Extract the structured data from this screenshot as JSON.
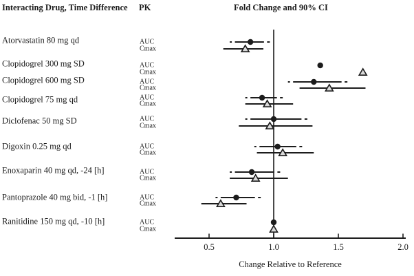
{
  "headers": {
    "drug_col": "Interacting Drug, Time Difference",
    "pk_col": "PK",
    "chart_title": "Fold Change and 90% CI"
  },
  "style": {
    "ink": "#1c1c1c",
    "triangle_fill": "#d9d9d9",
    "background": "#ffffff"
  },
  "chart_data": {
    "type": "scatter",
    "subtype": "forest-plot",
    "title": "Fold Change and 90% CI",
    "xlabel": "Change Relative to Reference",
    "xlim": [
      0.25,
      2.02
    ],
    "x_ticks": [
      "0.5",
      "1.0",
      "1.5",
      "2.0"
    ],
    "x_tick_values": [
      0.5,
      1.0,
      1.5,
      2.0
    ],
    "reference_line": 1.0,
    "ci_level": "90%",
    "pk_row_labels": [
      "AUC",
      "Cmax"
    ],
    "marker_legend": {
      "auc": "filled circle, dash-dot CI line",
      "cmax": "open triangle, solid CI line"
    },
    "groups": [
      {
        "drug": "Atorvastatin 80 mg qd",
        "auc": {
          "est": 0.82,
          "lo": 0.66,
          "hi": 0.97
        },
        "cmax": {
          "est": 0.78,
          "lo": 0.61,
          "hi": 0.92
        }
      },
      {
        "drug": "Clopidogrel 300 mg SD",
        "auc": {
          "est": 1.36,
          "lo": null,
          "hi": null
        },
        "cmax": {
          "est": 1.69,
          "lo": null,
          "hi": null
        }
      },
      {
        "drug": "Clopidogrel 600 mg SD",
        "auc": {
          "est": 1.31,
          "lo": 1.11,
          "hi": 1.57
        },
        "cmax": {
          "est": 1.43,
          "lo": 1.2,
          "hi": 1.71
        }
      },
      {
        "drug": "Clopidogrel 75 mg qd",
        "auc": {
          "est": 0.91,
          "lo": 0.78,
          "hi": 1.07
        },
        "cmax": {
          "est": 0.95,
          "lo": 0.78,
          "hi": 1.15
        }
      },
      {
        "drug": "Diclofenac 50 mg SD",
        "auc": {
          "est": 1.0,
          "lo": 0.78,
          "hi": 1.26
        },
        "cmax": {
          "est": 0.97,
          "lo": 0.73,
          "hi": 1.3
        }
      },
      {
        "drug": "Digoxin 0.25 mg qd",
        "auc": {
          "est": 1.03,
          "lo": 0.85,
          "hi": 1.22
        },
        "cmax": {
          "est": 1.07,
          "lo": 0.87,
          "hi": 1.31
        }
      },
      {
        "drug": "Enoxaparin 40 mg qd, -24 [h]",
        "auc": {
          "est": 0.83,
          "lo": 0.66,
          "hi": 1.05
        },
        "cmax": {
          "est": 0.86,
          "lo": 0.66,
          "hi": 1.11
        }
      },
      {
        "drug": "Pantoprazole 40 mg bid, -1 [h]",
        "auc": {
          "est": 0.71,
          "lo": 0.55,
          "hi": 0.9
        },
        "cmax": {
          "est": 0.59,
          "lo": 0.44,
          "hi": 0.79
        }
      },
      {
        "drug": "Ranitidine 150 mg qd, -10 [h]",
        "auc": {
          "est": 1.0,
          "lo": null,
          "hi": null
        },
        "cmax": {
          "est": 1.0,
          "lo": null,
          "hi": null
        }
      }
    ]
  }
}
